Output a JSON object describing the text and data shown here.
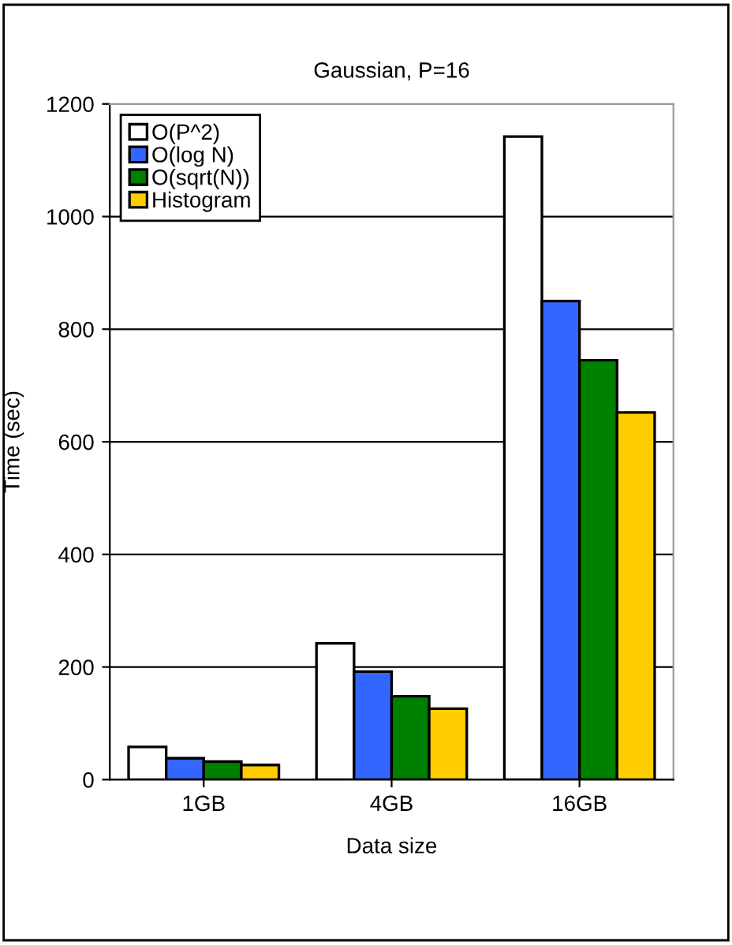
{
  "chart_data": {
    "type": "bar",
    "title": "Gaussian, P=16",
    "xlabel": "Data size",
    "ylabel": "Time (sec)",
    "categories": [
      "1GB",
      "4GB",
      "16GB"
    ],
    "series": [
      {
        "name": "O(P^2)",
        "color": "#ffffff",
        "values": [
          58,
          242,
          1142
        ]
      },
      {
        "name": "O(log N)",
        "color": "#3366ff",
        "values": [
          38,
          192,
          850
        ]
      },
      {
        "name": "O(sqrt(N))",
        "color": "#008000",
        "values": [
          32,
          148,
          745
        ]
      },
      {
        "name": "Histogram",
        "color": "#ffcc00",
        "values": [
          26,
          126,
          652
        ]
      }
    ],
    "ylim": [
      0,
      1200
    ],
    "yticks": [
      0,
      200,
      400,
      600,
      800,
      1000,
      1200
    ],
    "grid": "y",
    "legend": "top left"
  }
}
